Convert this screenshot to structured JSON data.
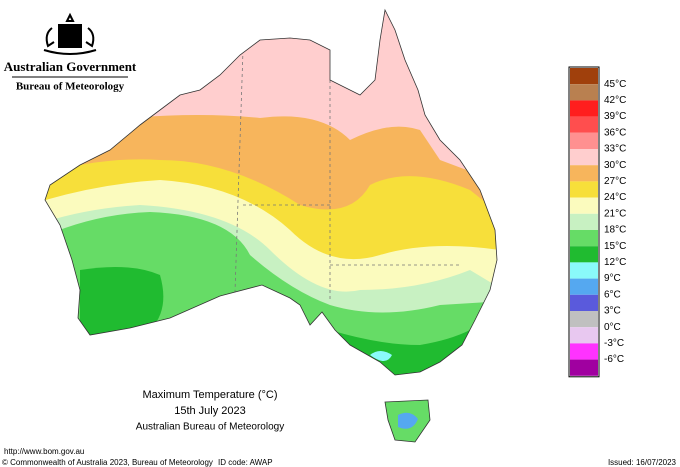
{
  "header": {
    "agency": "Australian Government",
    "bureau": "Bureau of Meteorology"
  },
  "title": {
    "line1": "Maximum Temperature (°C)",
    "line2": "15th July 2023",
    "line3": "Australian Bureau of Meteorology"
  },
  "legend": {
    "colors": [
      "#a0400c",
      "#b98050",
      "#ff1e1e",
      "#ff4e4e",
      "#ff9090",
      "#ffcece",
      "#f7b55c",
      "#f7df3a",
      "#fbfbbe",
      "#c8f1c2",
      "#66dc66",
      "#20bb30",
      "#8afafa",
      "#55a8f0",
      "#5a5adc",
      "#c0c0c0",
      "#e8c8f0",
      "#ff33ff",
      "#a000a0"
    ],
    "labels": [
      "45°C",
      "42°C",
      "39°C",
      "36°C",
      "33°C",
      "30°C",
      "27°C",
      "24°C",
      "21°C",
      "18°C",
      "15°C",
      "12°C",
      "9°C",
      "6°C",
      "3°C",
      "0°C",
      "-3°C",
      "-6°C"
    ]
  },
  "footer": {
    "url": "http://www.bom.gov.au",
    "copyright": "© Commonwealth of Australia 2023, Bureau of Meteorology",
    "id_code": "ID code: AWAP",
    "issued": "Issued: 16/07/2023"
  }
}
